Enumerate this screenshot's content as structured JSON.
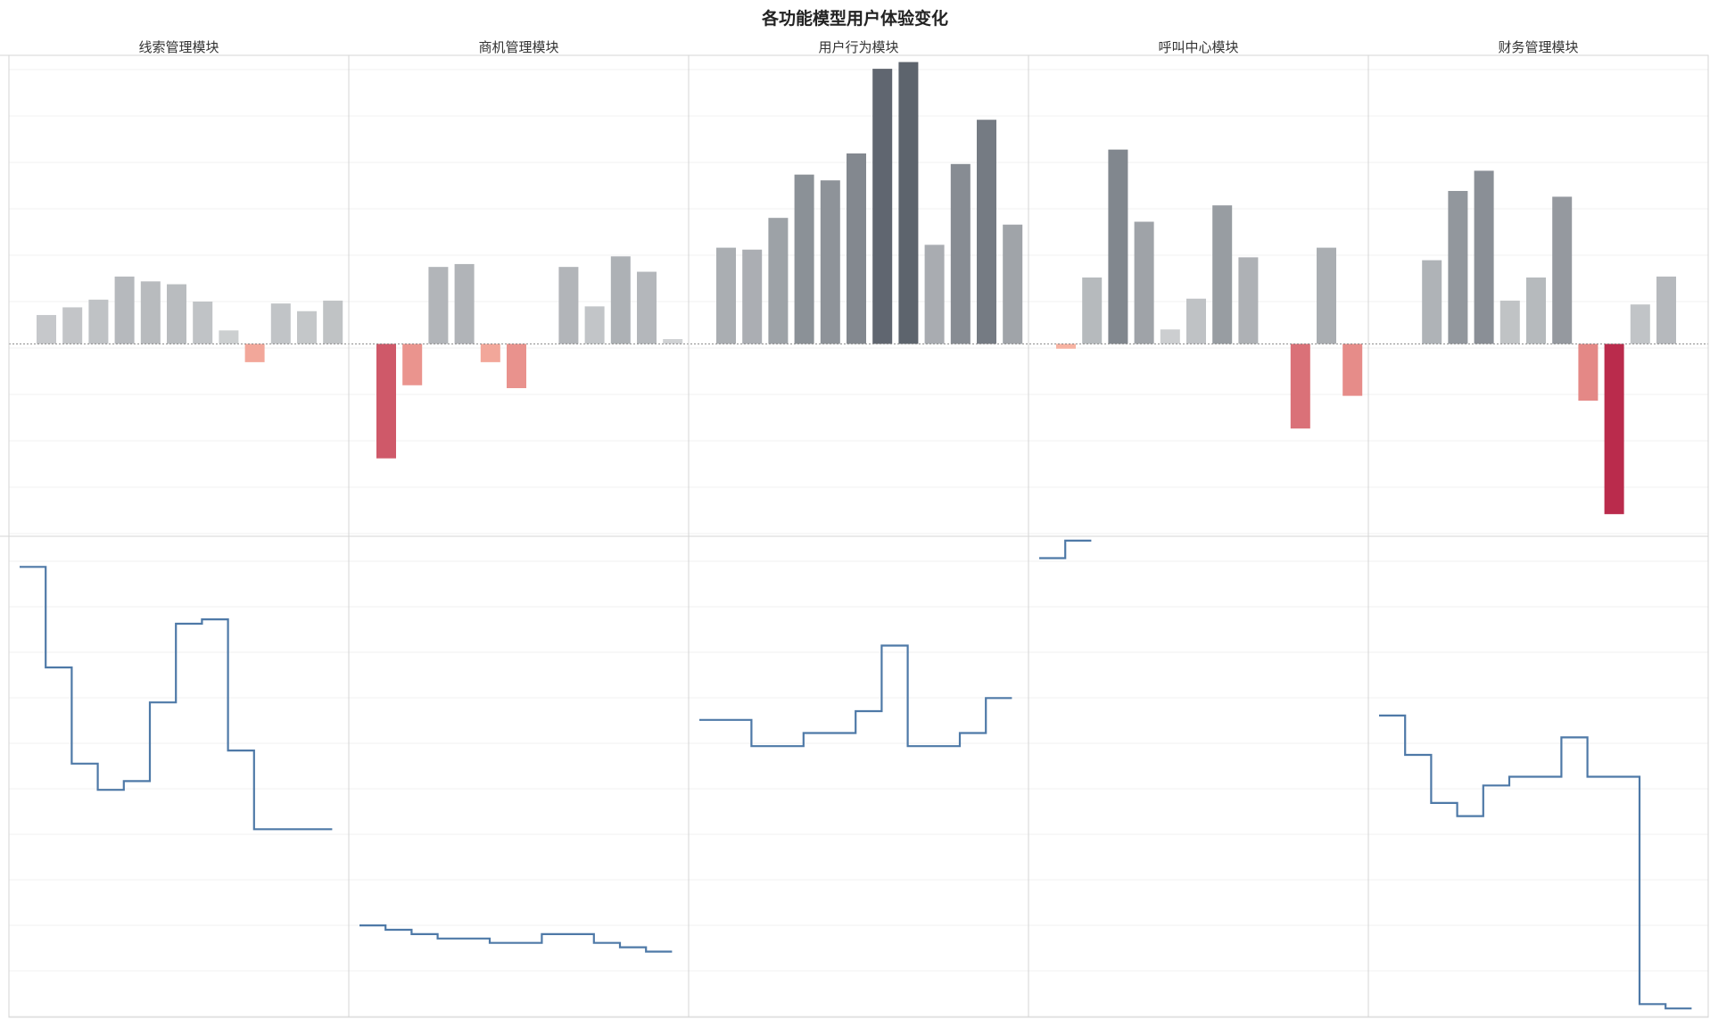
{
  "chart_data": {
    "title": "各功能模型用户体验变化",
    "panels": [
      "线索管理模块",
      "商机管理模块",
      "用户行为模块",
      "呼叫中心模块",
      "财务管理模块"
    ],
    "top": {
      "type": "bar",
      "ylim": [
        -20,
        30
      ],
      "colors": {
        "positive_scale": [
          "#d8dadb",
          "#5a616b"
        ],
        "negative_scale": [
          "#f9b6a3",
          "#b9294b"
        ]
      },
      "series": [
        [
          3.0,
          3.8,
          4.6,
          7.0,
          6.5,
          6.2,
          4.4,
          1.4,
          -1.9,
          4.2,
          3.4,
          4.5
        ],
        [
          -11.9,
          -4.3,
          8.0,
          8.3,
          -1.9,
          -4.6,
          0,
          8.0,
          3.9,
          9.1,
          7.5,
          0.5
        ],
        [
          10.0,
          9.8,
          13.1,
          17.6,
          17.0,
          19.8,
          28.6,
          29.3,
          10.3,
          18.7,
          23.3,
          12.4
        ],
        [
          -0.5,
          6.9,
          20.2,
          12.7,
          1.5,
          4.7,
          14.4,
          9.0,
          0,
          -8.8,
          10.0,
          -5.4
        ],
        [
          0,
          8.7,
          15.9,
          18.0,
          4.5,
          6.9,
          15.3,
          -5.9,
          -17.7,
          4.1,
          7.0,
          0
        ]
      ]
    },
    "bottom": {
      "type": "line",
      "step": "post",
      "ylim": [
        -10,
        100
      ],
      "color": "#4e79a7",
      "series": [
        [
          93,
          70,
          48,
          42,
          44,
          62,
          80,
          81,
          51,
          33,
          33,
          33
        ],
        [
          11,
          10,
          9,
          8,
          8,
          7,
          7,
          9,
          9,
          7,
          6,
          5
        ],
        [
          58,
          58,
          52,
          52,
          55,
          55,
          60,
          75,
          52,
          52,
          55,
          63
        ],
        [
          95,
          99,
          null,
          null,
          null,
          null,
          null,
          null,
          null,
          null,
          null,
          null
        ],
        [
          59,
          50,
          39,
          36,
          43,
          45,
          45,
          54,
          45,
          45,
          -7,
          -8
        ]
      ]
    }
  }
}
